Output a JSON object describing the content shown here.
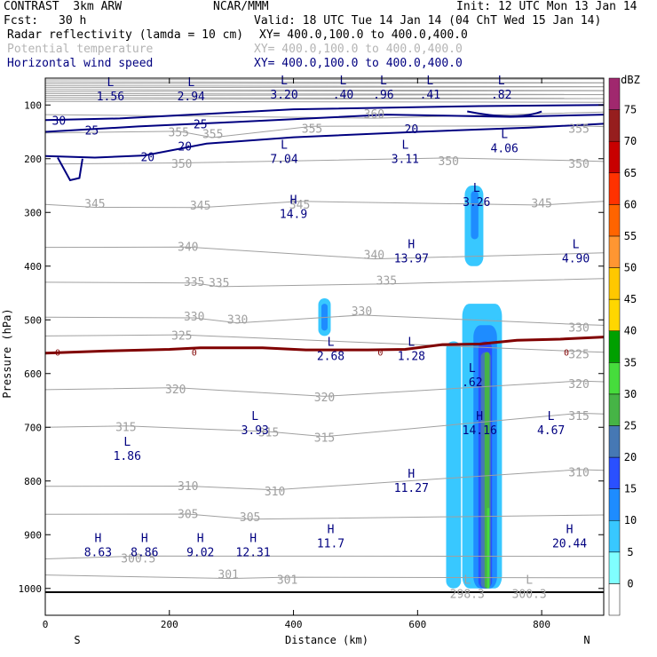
{
  "header": {
    "model": "CONTRAST  3km ARW",
    "org": "NCAR/MMM",
    "init": "Init: 12 UTC Mon 13 Jan 14",
    "fcst_label": "Fcst:",
    "fcst_value": "30 h",
    "valid": "Valid: 18 UTC Tue 14 Jan 14 (04 ChT Wed 15 Jan 14)",
    "field1": "Radar reflectivity (lamda = 10 cm)",
    "field1_xy": "XY= 400.0,100.0 to 400.0,400.0",
    "field2": "Potential temperature",
    "field2_xy": "XY= 400.0,100.0 to 400.0,400.0",
    "field3": "Horizontal wind speed",
    "field3_xy": "XY= 400.0,100.0 to 400.0,400.0"
  },
  "colors": {
    "reflectivity": [
      "#ffffff",
      "#80ffff",
      "#38c8ff",
      "#1e8cff",
      "#2a50ff",
      "#4678b4",
      "#46b446",
      "#46dc3c",
      "#00a000",
      "#ffd700",
      "#ffc800",
      "#ff9632",
      "#ff6400",
      "#ff3200",
      "#c80000",
      "#961e1e",
      "#a0286e",
      "#8c3296",
      "#b478c8"
    ],
    "theta": "#a0a0a0",
    "wind": "#000080",
    "freezing": "#800000"
  },
  "chart_data": {
    "type": "cross-section",
    "xlabel": "Distance (km)",
    "ylabel": "Pressure (hPa)",
    "xlim": [
      0,
      900
    ],
    "ylim": [
      1050,
      50
    ],
    "x_ticks": [
      0,
      200,
      400,
      600,
      800
    ],
    "y_ticks": [
      100,
      200,
      300,
      400,
      500,
      600,
      700,
      800,
      900,
      1000
    ],
    "left_end": "S",
    "right_end": "N",
    "colorbar": {
      "unit": "dBZ",
      "levels": [
        0,
        5,
        10,
        15,
        20,
        25,
        30,
        35,
        40,
        45,
        50,
        55,
        60,
        65,
        70,
        75
      ]
    },
    "theta_contours": [
      {
        "label": "300.5",
        "x": 150,
        "p": 945
      },
      {
        "label": "301",
        "x": 295,
        "p": 975
      },
      {
        "label": "301",
        "x": 390,
        "p": 985
      },
      {
        "label": "305",
        "x": 230,
        "p": 862
      },
      {
        "label": "305",
        "x": 330,
        "p": 868
      },
      {
        "label": "310",
        "x": 230,
        "p": 810
      },
      {
        "label": "310",
        "x": 370,
        "p": 820
      },
      {
        "label": "310",
        "x": 860,
        "p": 785
      },
      {
        "label": "315",
        "x": 130,
        "p": 700
      },
      {
        "label": "315",
        "x": 360,
        "p": 710
      },
      {
        "label": "315",
        "x": 450,
        "p": 720
      },
      {
        "label": "315",
        "x": 860,
        "p": 680
      },
      {
        "label": "320",
        "x": 210,
        "p": 630
      },
      {
        "label": "320",
        "x": 450,
        "p": 645
      },
      {
        "label": "320",
        "x": 860,
        "p": 620
      },
      {
        "label": "325",
        "x": 220,
        "p": 530
      },
      {
        "label": "325",
        "x": 860,
        "p": 565
      },
      {
        "label": "330",
        "x": 240,
        "p": 495
      },
      {
        "label": "330",
        "x": 310,
        "p": 500
      },
      {
        "label": "330",
        "x": 510,
        "p": 485
      },
      {
        "label": "330",
        "x": 860,
        "p": 515
      },
      {
        "label": "335",
        "x": 240,
        "p": 430
      },
      {
        "label": "335",
        "x": 280,
        "p": 432
      },
      {
        "label": "335",
        "x": 550,
        "p": 428
      },
      {
        "label": "340",
        "x": 230,
        "p": 365
      },
      {
        "label": "340",
        "x": 530,
        "p": 380
      },
      {
        "label": "345",
        "x": 80,
        "p": 285
      },
      {
        "label": "345",
        "x": 250,
        "p": 288
      },
      {
        "label": "345",
        "x": 410,
        "p": 286
      },
      {
        "label": "345",
        "x": 800,
        "p": 284
      },
      {
        "label": "350",
        "x": 220,
        "p": 210
      },
      {
        "label": "350",
        "x": 650,
        "p": 205
      },
      {
        "label": "350",
        "x": 860,
        "p": 210
      },
      {
        "label": "355",
        "x": 215,
        "p": 152
      },
      {
        "label": "355",
        "x": 270,
        "p": 155
      },
      {
        "label": "355",
        "x": 430,
        "p": 145
      },
      {
        "label": "355",
        "x": 860,
        "p": 145
      },
      {
        "label": "360",
        "x": 530,
        "p": 118
      }
    ],
    "wind_contours": [
      {
        "label": "30",
        "x": 22,
        "p": 130
      },
      {
        "label": "25",
        "x": 75,
        "p": 148
      },
      {
        "label": "25",
        "x": 250,
        "p": 137
      },
      {
        "label": "20",
        "x": 165,
        "p": 198
      },
      {
        "label": "20",
        "x": 225,
        "p": 178
      },
      {
        "label": "20",
        "x": 590,
        "p": 146
      }
    ],
    "freezing_level": {
      "label": "0",
      "points": [
        [
          0,
          562
        ],
        [
          100,
          558
        ],
        [
          200,
          555
        ],
        [
          250,
          552
        ],
        [
          350,
          552
        ],
        [
          420,
          556
        ],
        [
          520,
          556
        ],
        [
          580,
          555
        ],
        [
          640,
          546
        ],
        [
          700,
          545
        ],
        [
          760,
          538
        ],
        [
          830,
          536
        ],
        [
          900,
          532
        ]
      ]
    },
    "reflectivity_cells": [
      {
        "x": [
          440,
          460
        ],
        "p": [
          460,
          530
        ],
        "dbz": 5
      },
      {
        "x": [
          445,
          455
        ],
        "p": [
          470,
          520
        ],
        "dbz": 10
      },
      {
        "x": [
          676,
          706
        ],
        "p": [
          250,
          400
        ],
        "dbz": 5
      },
      {
        "x": [
          686,
          698
        ],
        "p": [
          260,
          350
        ],
        "dbz": 10
      },
      {
        "x": [
          646,
          670
        ],
        "p": [
          540,
          1000
        ],
        "dbz": 5
      },
      {
        "x": [
          672,
          736
        ],
        "p": [
          470,
          1000
        ],
        "dbz": 5
      },
      {
        "x": [
          690,
          728
        ],
        "p": [
          510,
          1000
        ],
        "dbz": 10
      },
      {
        "x": [
          698,
          720
        ],
        "p": [
          540,
          1000
        ],
        "dbz": 15
      },
      {
        "x": [
          702,
          718
        ],
        "p": [
          560,
          1000
        ],
        "dbz": 20
      },
      {
        "x": [
          708,
          716
        ],
        "p": [
          560,
          1000
        ],
        "dbz": 25
      },
      {
        "x": [
          712,
          716
        ],
        "p": [
          850,
          1000
        ],
        "dbz": 30
      }
    ],
    "extrema": [
      {
        "type": "L",
        "value": "1.56",
        "x": 105,
        "p": 68,
        "color": "navy"
      },
      {
        "type": "L",
        "value": "2.94",
        "x": 235,
        "p": 68,
        "color": "navy"
      },
      {
        "type": "L",
        "value": "3.20",
        "x": 385,
        "p": 65,
        "color": "navy"
      },
      {
        "type": "L",
        "value": ".40",
        "x": 480,
        "p": 65,
        "color": "navy"
      },
      {
        "type": "L",
        "value": ".96",
        "x": 545,
        "p": 65,
        "color": "navy"
      },
      {
        "type": "L",
        "value": ".41",
        "x": 620,
        "p": 65,
        "color": "navy"
      },
      {
        "type": "L",
        "value": ".82",
        "x": 735,
        "p": 65,
        "color": "navy"
      },
      {
        "type": "L",
        "value": "4.06",
        "x": 740,
        "p": 165,
        "color": "navy"
      },
      {
        "type": "L",
        "value": "7.04",
        "x": 385,
        "p": 185,
        "color": "navy"
      },
      {
        "type": "L",
        "value": "3.11",
        "x": 580,
        "p": 185,
        "color": "navy"
      },
      {
        "type": "L",
        "value": "3.26",
        "x": 695,
        "p": 265,
        "color": "navy"
      },
      {
        "type": "H",
        "value": "14.9",
        "x": 400,
        "p": 287,
        "color": "navy"
      },
      {
        "type": "H",
        "value": "13.97",
        "x": 590,
        "p": 370,
        "color": "navy"
      },
      {
        "type": "L",
        "value": "4.90",
        "x": 855,
        "p": 370,
        "color": "navy"
      },
      {
        "type": "L",
        "value": "2.68",
        "x": 460,
        "p": 552,
        "color": "navy"
      },
      {
        "type": "L",
        "value": "1.28",
        "x": 590,
        "p": 552,
        "color": "navy"
      },
      {
        "type": "L",
        "value": ".62",
        "x": 688,
        "p": 600,
        "color": "navy"
      },
      {
        "type": "L",
        "value": "3.93",
        "x": 338,
        "p": 690,
        "color": "navy"
      },
      {
        "type": "H",
        "value": "14.16",
        "x": 700,
        "p": 690,
        "color": "navy"
      },
      {
        "type": "L",
        "value": "4.67",
        "x": 815,
        "p": 690,
        "color": "navy"
      },
      {
        "type": "L",
        "value": "1.86",
        "x": 132,
        "p": 738,
        "color": "navy"
      },
      {
        "type": "H",
        "value": "11.27",
        "x": 590,
        "p": 797,
        "color": "navy"
      },
      {
        "type": "H",
        "value": "11.7",
        "x": 460,
        "p": 900,
        "color": "navy"
      },
      {
        "type": "H",
        "value": "20.44",
        "x": 845,
        "p": 900,
        "color": "navy"
      },
      {
        "type": "H",
        "value": "8.63",
        "x": 85,
        "p": 917,
        "color": "navy"
      },
      {
        "type": "H",
        "value": "8.86",
        "x": 160,
        "p": 917,
        "color": "navy"
      },
      {
        "type": "H",
        "value": "9.02",
        "x": 250,
        "p": 917,
        "color": "navy"
      },
      {
        "type": "H",
        "value": "12.31",
        "x": 335,
        "p": 917,
        "color": "navy"
      },
      {
        "type": "L",
        "value": "298.3",
        "x": 680,
        "p": 995,
        "color": "gray"
      },
      {
        "type": "L",
        "value": "300.3",
        "x": 780,
        "p": 995,
        "color": "gray"
      }
    ]
  }
}
